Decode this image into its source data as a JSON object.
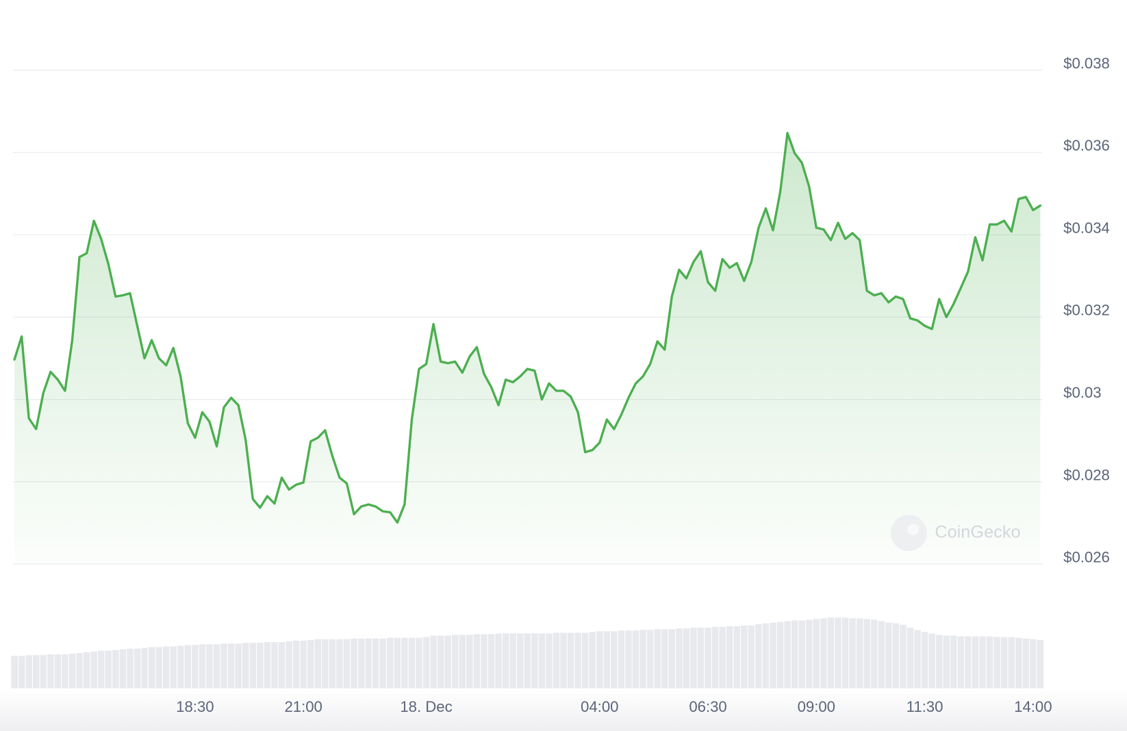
{
  "chart_data": {
    "type": "line",
    "watermark": "CoinGecko",
    "color": "#4caf50",
    "ylim": [
      0.026,
      0.038
    ],
    "yticks": [
      {
        "value": 0.026,
        "label": "$0.026"
      },
      {
        "value": 0.028,
        "label": "$0.028"
      },
      {
        "value": 0.03,
        "label": "$0.03"
      },
      {
        "value": 0.032,
        "label": "$0.032"
      },
      {
        "value": 0.034,
        "label": "$0.034"
      },
      {
        "value": 0.036,
        "label": "$0.036"
      },
      {
        "value": 0.038,
        "label": "$0.038"
      }
    ],
    "grid": true,
    "categories": [
      null,
      null,
      null,
      null,
      null,
      null,
      null,
      null,
      null,
      null,
      null,
      null,
      null,
      null,
      null,
      null,
      null,
      null,
      null,
      null,
      null,
      null,
      null,
      null,
      null,
      "18:30",
      null,
      null,
      null,
      null,
      null,
      null,
      null,
      null,
      null,
      null,
      null,
      null,
      null,
      null,
      "21:00",
      null,
      null,
      null,
      null,
      null,
      null,
      null,
      null,
      null,
      null,
      null,
      null,
      null,
      null,
      null,
      null,
      "18. Dec",
      null,
      null,
      null,
      null,
      null,
      null,
      null,
      null,
      null,
      null,
      null,
      null,
      null,
      null,
      null,
      null,
      null,
      null,
      null,
      null,
      null,
      null,
      null,
      "04:00",
      null,
      null,
      null,
      null,
      null,
      null,
      null,
      null,
      null,
      null,
      null,
      null,
      null,
      null,
      "06:30",
      null,
      null,
      null,
      null,
      null,
      null,
      null,
      null,
      null,
      null,
      null,
      null,
      null,
      null,
      "09:00",
      null,
      null,
      null,
      null,
      null,
      null,
      null,
      null,
      null,
      null,
      null,
      null,
      null,
      null,
      "11:30",
      null,
      null,
      null,
      null,
      null,
      null,
      null,
      null,
      null,
      null,
      null,
      null,
      null,
      null,
      "14:00",
      null
    ],
    "values": [
      0.03097,
      0.03153,
      0.02954,
      0.02928,
      0.03016,
      0.03067,
      0.03048,
      0.03021,
      0.03144,
      0.03346,
      0.03355,
      0.03434,
      0.0339,
      0.03329,
      0.0325,
      0.03253,
      0.03258,
      0.03179,
      0.031,
      0.03144,
      0.031,
      0.03083,
      0.03125,
      0.03056,
      0.02942,
      0.02907,
      0.02969,
      0.02946,
      0.02886,
      0.02981,
      0.03004,
      0.02986,
      0.02902,
      0.02758,
      0.02737,
      0.02765,
      0.02747,
      0.0281,
      0.02781,
      0.02793,
      0.02798,
      0.02898,
      0.02907,
      0.02925,
      0.02863,
      0.0281,
      0.02796,
      0.02721,
      0.0274,
      0.02745,
      0.0274,
      0.02728,
      0.02726,
      0.02701,
      0.02745,
      0.02951,
      0.03074,
      0.03086,
      0.03183,
      0.03092,
      0.03088,
      0.03092,
      0.03065,
      0.03104,
      0.03127,
      0.03062,
      0.0303,
      0.02986,
      0.03048,
      0.03042,
      0.03056,
      0.03074,
      0.0307,
      0.03,
      0.03039,
      0.03021,
      0.03021,
      0.03007,
      0.02969,
      0.02872,
      0.02877,
      0.02895,
      0.02951,
      0.02928,
      0.02963,
      0.03004,
      0.03039,
      0.03056,
      0.03086,
      0.03141,
      0.03121,
      0.0325,
      0.03315,
      0.03294,
      0.03334,
      0.0336,
      0.03285,
      0.03264,
      0.03341,
      0.0332,
      0.03331,
      0.03288,
      0.03334,
      0.03417,
      0.03464,
      0.03411,
      0.03504,
      0.03647,
      0.03598,
      0.03575,
      0.03517,
      0.03417,
      0.03413,
      0.03387,
      0.03429,
      0.0339,
      0.03404,
      0.03387,
      0.03264,
      0.03253,
      0.03258,
      0.03236,
      0.0325,
      0.03244,
      0.03197,
      0.03192,
      0.03179,
      0.03171,
      0.03244,
      0.032,
      0.03232,
      0.03271,
      0.03311,
      0.03394,
      0.03338,
      0.03425,
      0.03425,
      0.03434,
      0.03408,
      0.03487,
      0.03492,
      0.0346,
      0.03471
    ],
    "volume": {
      "color": "#e8e9ed",
      "values": [
        45,
        45,
        46,
        46,
        46,
        47,
        47,
        47,
        48,
        49,
        50,
        51,
        52,
        52,
        53,
        54,
        55,
        55,
        56,
        57,
        57,
        58,
        58,
        59,
        60,
        60,
        61,
        61,
        61,
        62,
        62,
        62,
        63,
        63,
        63,
        64,
        64,
        64,
        65,
        66,
        66,
        67,
        68,
        68,
        68,
        68,
        68,
        69,
        69,
        69,
        69,
        69,
        70,
        70,
        70,
        70,
        70,
        71,
        73,
        73,
        73,
        74,
        74,
        74,
        75,
        75,
        75,
        76,
        76,
        76,
        76,
        76,
        76,
        76,
        76,
        77,
        77,
        77,
        77,
        77,
        78,
        79,
        79,
        79,
        80,
        80,
        80,
        81,
        81,
        82,
        82,
        82,
        83,
        83,
        84,
        84,
        84,
        85,
        85,
        86,
        86,
        87,
        87,
        89,
        90,
        91,
        92,
        93,
        94,
        94,
        95,
        96,
        97,
        98,
        98,
        98,
        97,
        97,
        96,
        95,
        93,
        91,
        90,
        88,
        84,
        81,
        78,
        76,
        74,
        73,
        73,
        72,
        72,
        72,
        72,
        72,
        71,
        71,
        71,
        70,
        69,
        68,
        67
      ]
    }
  }
}
